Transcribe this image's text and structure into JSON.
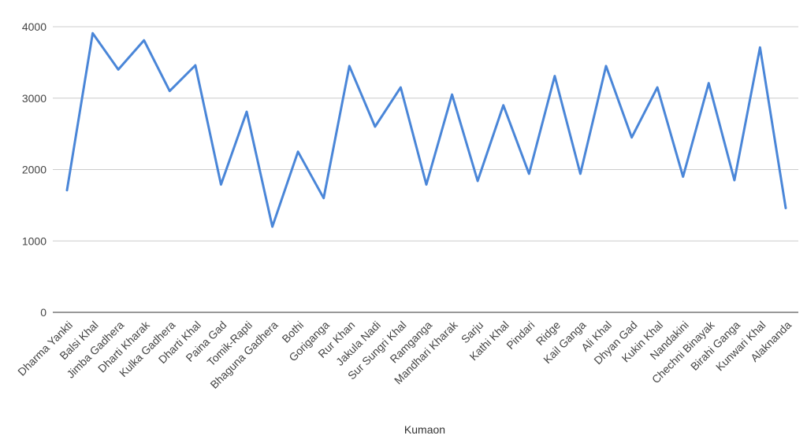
{
  "chart_data": {
    "type": "line",
    "title": "",
    "xlabel": "Kumaon",
    "ylabel": "",
    "ylim": [
      0,
      4000
    ],
    "yticks": [
      0,
      1000,
      2000,
      3000,
      4000
    ],
    "grid": true,
    "legend": "none",
    "categories": [
      "Dharma Yankti",
      "Balsi Khal",
      "Jimba Gadhera",
      "Dharti Kharak",
      "Kulka Gadhera",
      "Dharti Khal",
      "Paina Gad",
      "Tomik-Rapti",
      "Bhaguna Gadhera",
      "Bothi",
      "Goriganga",
      "Rur Khan",
      "Jakula Nadi",
      "Sur Sungri Khal",
      "Ramganga",
      "Mandhari Kharak",
      "Sarju",
      "Kathi Khal",
      "Pindari",
      "Ridge",
      "Kail Ganga",
      "Ali Khal",
      "Dhyan Gad",
      "Kukin Khal",
      "Nandakini",
      "Chechni Binayak",
      "Birahi Ganga",
      "Kunwari Khal",
      "Alaknanda"
    ],
    "series": [
      {
        "color": "#4a86d8",
        "values": [
          1710,
          3910,
          3400,
          3810,
          3100,
          3460,
          1790,
          2810,
          1200,
          2250,
          1600,
          3450,
          2600,
          3150,
          1790,
          3050,
          1840,
          2900,
          1940,
          3310,
          1940,
          3450,
          2450,
          3150,
          1900,
          3210,
          1850,
          3710,
          1460
        ]
      }
    ]
  }
}
